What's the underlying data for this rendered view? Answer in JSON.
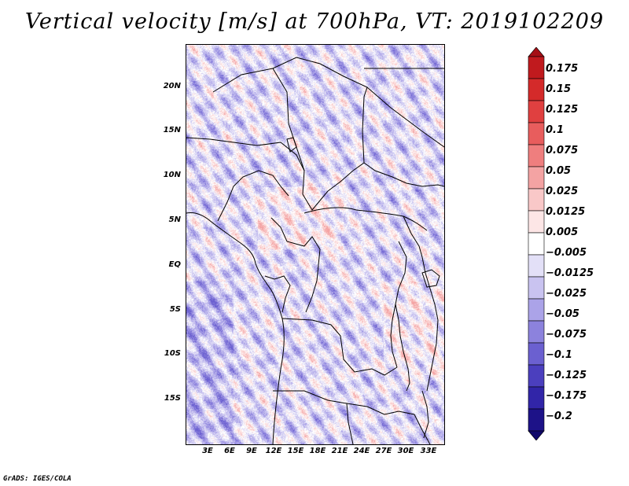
{
  "title": "Vertical velocity [m/s] at 700hPa, VT: 2019102209",
  "credit": "GrADS: IGES/COLA",
  "map": {
    "lon_range": [
      0,
      35
    ],
    "lat_range": [
      -21,
      25
    ],
    "lat_labels": [
      "20N",
      "15N",
      "10N",
      "5N",
      "EQ",
      "5S",
      "10S",
      "15S"
    ],
    "lon_labels": [
      "3E",
      "6E",
      "9E",
      "12E",
      "15E",
      "18E",
      "21E",
      "24E",
      "27E",
      "30E",
      "33E"
    ]
  },
  "colorbar": {
    "levels": [
      "0.175",
      "0.15",
      "0.125",
      "0.1",
      "0.075",
      "0.05",
      "0.025",
      "0.0125",
      "0.005",
      "−0.005",
      "−0.0125",
      "−0.025",
      "−0.05",
      "−0.075",
      "−0.1",
      "−0.125",
      "−0.175",
      "−0.2"
    ],
    "colors": [
      "#a50f15",
      "#c01a1e",
      "#d42a2a",
      "#e04040",
      "#e85d5d",
      "#ef7e7e",
      "#f4a3a3",
      "#f9c8c8",
      "#fde6e6",
      "#ffffff",
      "#e3e0f7",
      "#c9c3f0",
      "#aba3e8",
      "#8c82dd",
      "#6b60d0",
      "#4b3fbe",
      "#3125a8",
      "#1d1288",
      "#10086a"
    ]
  }
}
